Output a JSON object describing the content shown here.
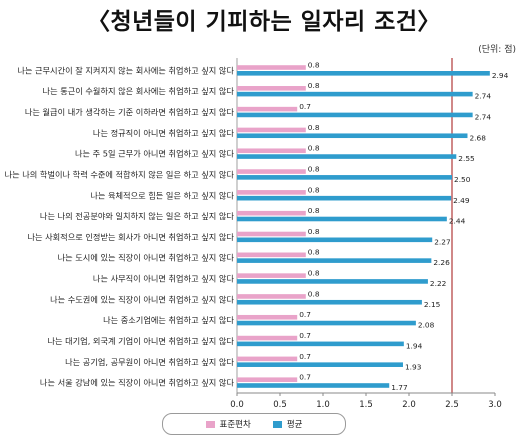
{
  "title": "〈청년들이 기피하는 일자리 조건〉",
  "unit": "(단위: 점)",
  "colors": {
    "std": "#e9a3c9",
    "mean": "#2f9ccd",
    "refline": "#b03a3a",
    "axis": "#888888"
  },
  "legend": {
    "std_label": "표준편차",
    "mean_label": "평균"
  },
  "chart_data": {
    "type": "bar",
    "orientation": "horizontal",
    "title": "〈청년들이 기피하는 일자리 조건〉",
    "xlim": [
      0,
      3.0
    ],
    "xticks": [
      "0.0",
      "0.5",
      "1.0",
      "1.5",
      "2.0",
      "2.5",
      "3.0"
    ],
    "reference_line": 2.5,
    "categories": [
      "나는 근무시간이 잘 지켜지지 않는 회사에는 취업하고 싶지 않다",
      "나는 통근이 수월하지 않은 회사에는 취업하고 싶지 않다",
      "나는 월급이 내가 생각하는 기준 이하라면 취업하고 싶지 않다",
      "나는 정규직이 아니면 취업하고 싶지 않다",
      "나는 주 5일 근무가 아니면 취업하고 싶지 않다",
      "나는 나의 학벌이나 학력 수준에 적합하지 않은 일은 하고 싶지 않다",
      "나는 육체적으로 힘든 일은 하고 싶지 않다",
      "나는 나의 전공분야와 일치하지 않는 일은 하고 싶지 않다",
      "나는 사회적으로 인정받는 회사가 아니면 취업하고 싶지 않다",
      "나는 도시에 있는 직장이 아니면 취업하고 싶지 않다",
      "나는 사무직이 아니면 취업하고 싶지 않다",
      "나는 수도권에 있는 직장이 아니면 취업하고 싶지 않다",
      "나는 중소기업에는 취업하고 싶지 않다",
      "나는 대기업, 외국계 기업이 아니면 취업하고 싶지 않다",
      "나는 공기업, 공무원이 아니면 취업하고 싶지 않다",
      "나는 서울 강남에 있는 직장이 아니면 취업하고 싶지 않다"
    ],
    "series": [
      {
        "name": "표준편차",
        "values": [
          0.8,
          0.8,
          0.7,
          0.8,
          0.8,
          0.8,
          0.8,
          0.8,
          0.8,
          0.8,
          0.8,
          0.8,
          0.7,
          0.7,
          0.7,
          0.7
        ]
      },
      {
        "name": "평균",
        "values": [
          2.94,
          2.74,
          2.74,
          2.68,
          2.55,
          2.5,
          2.49,
          2.44,
          2.27,
          2.26,
          2.22,
          2.15,
          2.08,
          1.94,
          1.93,
          1.77
        ]
      }
    ]
  }
}
